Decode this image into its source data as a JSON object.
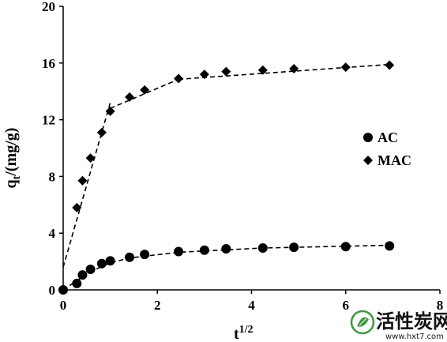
{
  "chart_data": {
    "type": "scatter",
    "xlabel_base": "t",
    "xlabel_sup": "1/2",
    "ylabel_base": "q",
    "ylabel_sub": "t",
    "ylabel_rest": "/(mg/g)",
    "xlim": [
      0,
      8
    ],
    "ylim": [
      0,
      20
    ],
    "x_ticks": [
      0,
      2,
      4,
      6,
      8
    ],
    "y_ticks": [
      0,
      4,
      8,
      12,
      16,
      20
    ],
    "grid": false,
    "legend_position": "right-middle",
    "series": [
      {
        "name": "AC",
        "marker": "circle",
        "x": [
          0,
          0.29,
          0.41,
          0.58,
          0.82,
          1.0,
          1.41,
          1.73,
          2.45,
          3.0,
          3.46,
          4.24,
          4.9,
          6.0,
          6.93
        ],
        "y": [
          0,
          0.45,
          1.05,
          1.45,
          1.85,
          2.05,
          2.3,
          2.5,
          2.7,
          2.8,
          2.9,
          2.95,
          3.0,
          3.05,
          3.1
        ],
        "fit_lines": [
          {
            "x": [
              0,
              0.58,
              1.0,
              1.41,
              2.45,
              4.24,
              6.93
            ],
            "y": [
              0,
              1.3,
              1.9,
              2.25,
              2.65,
              2.95,
              3.15
            ]
          }
        ]
      },
      {
        "name": "MAC",
        "marker": "diamond",
        "x": [
          0.29,
          0.41,
          0.58,
          0.82,
          1.0,
          1.41,
          1.73,
          2.45,
          3.0,
          3.46,
          4.24,
          4.9,
          6.0,
          6.93
        ],
        "y": [
          5.8,
          7.7,
          9.3,
          11.1,
          12.6,
          13.6,
          14.1,
          14.9,
          15.2,
          15.4,
          15.5,
          15.6,
          15.7,
          15.85
        ],
        "fit_lines": [
          {
            "x": [
              0,
              1.0
            ],
            "y": [
              1.6,
              13.2
            ]
          },
          {
            "x": [
              1.0,
              2.45
            ],
            "y": [
              12.8,
              14.85
            ]
          },
          {
            "x": [
              2.45,
              6.93
            ],
            "y": [
              14.85,
              15.9
            ]
          }
        ]
      }
    ]
  },
  "watermark": {
    "text": "活性炭网",
    "url": "www.hxt7.com",
    "logo": "leaf-circle-logo"
  }
}
